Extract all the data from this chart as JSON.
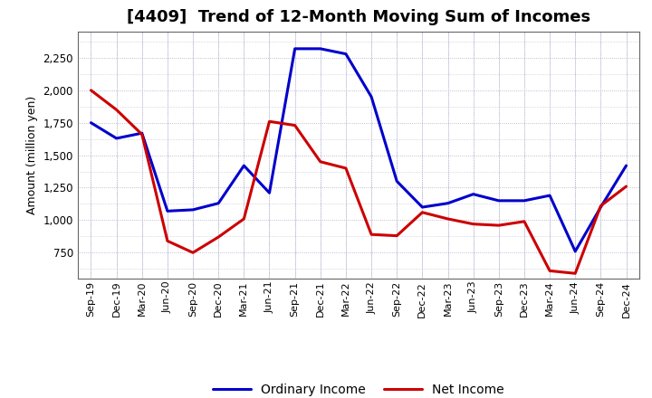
{
  "title": "[4409]  Trend of 12-Month Moving Sum of Incomes",
  "ylabel": "Amount (million yen)",
  "x_labels": [
    "Sep-19",
    "Dec-19",
    "Mar-20",
    "Jun-20",
    "Sep-20",
    "Dec-20",
    "Mar-21",
    "Jun-21",
    "Sep-21",
    "Dec-21",
    "Mar-22",
    "Jun-22",
    "Sep-22",
    "Dec-22",
    "Mar-23",
    "Jun-23",
    "Sep-23",
    "Dec-23",
    "Mar-24",
    "Jun-24",
    "Sep-24",
    "Dec-24"
  ],
  "ordinary_income": [
    1750,
    1630,
    1670,
    1070,
    1080,
    1130,
    1420,
    1210,
    2320,
    2320,
    2280,
    1950,
    1300,
    1100,
    1130,
    1200,
    1150,
    1150,
    1190,
    760,
    1100,
    1420
  ],
  "net_income": [
    2000,
    1850,
    1660,
    840,
    750,
    870,
    1010,
    1760,
    1730,
    1450,
    1400,
    890,
    880,
    1060,
    1010,
    970,
    960,
    990,
    610,
    590,
    1110,
    1260
  ],
  "ordinary_color": "#0000cc",
  "net_color": "#cc0000",
  "ylim_min": 550,
  "ylim_max": 2450,
  "yticks": [
    750,
    1000,
    1250,
    1500,
    1750,
    2000,
    2250
  ],
  "bg_color": "#ffffff",
  "grid_color": "#aaaacc",
  "line_width": 2.2,
  "title_fontsize": 13,
  "tick_fontsize": 8,
  "ylabel_fontsize": 9,
  "legend_fontsize": 10
}
